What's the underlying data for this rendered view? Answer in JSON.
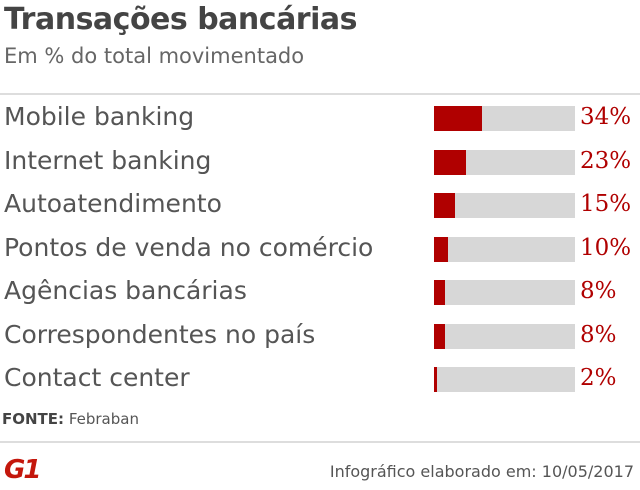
{
  "header": {
    "title": "Transações bancárias",
    "subtitle": "Em % do total movimentado"
  },
  "chart_data": {
    "type": "bar",
    "orientation": "horizontal",
    "categories": [
      "Mobile banking",
      "Internet banking",
      "Autoatendimento",
      "Pontos de venda no comércio",
      "Agências bancárias",
      "Correspondentes no país",
      "Contact center"
    ],
    "values": [
      34,
      23,
      15,
      10,
      8,
      8,
      2
    ],
    "value_labels": [
      "34%",
      "23%",
      "15%",
      "10%",
      "8%",
      "8%",
      "2%"
    ],
    "xlim": [
      0,
      100
    ],
    "bar_color": "#b00000",
    "track_color": "#d7d7d7",
    "grid": false
  },
  "footer": {
    "source_label": "FONTE:",
    "source_value": "Febraban",
    "logo_text": "G1",
    "credit": "Infográfico elaborado em: 10/05/2017"
  }
}
